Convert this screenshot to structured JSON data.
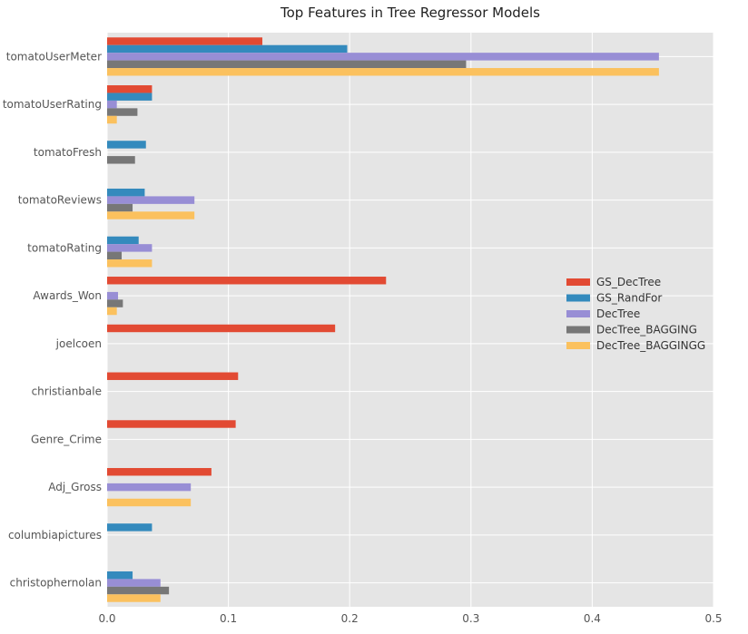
{
  "chart_data": {
    "type": "bar",
    "orientation": "horizontal",
    "title": "Top Features in Tree Regressor Models",
    "xlabel": "",
    "ylabel": "",
    "xlim": [
      0,
      0.5
    ],
    "xticks": [
      0.0,
      0.1,
      0.2,
      0.3,
      0.4,
      0.5
    ],
    "xtick_labels": [
      "0.0",
      "0.1",
      "0.2",
      "0.3",
      "0.4",
      "0.5"
    ],
    "grid": true,
    "legend_position": "center-right",
    "categories": [
      "tomatoUserMeter",
      "tomatoUserRating",
      "tomatoFresh",
      "tomatoReviews",
      "tomatoRating",
      "Awards_Won",
      "joelcoen",
      "christianbale",
      "Genre_Crime",
      "Adj_Gross",
      "columbiapictures",
      "christophernolan"
    ],
    "series": [
      {
        "name": "GS_DecTree",
        "color": "#e24a33",
        "values": [
          0.128,
          0.037,
          0,
          0,
          0,
          0.23,
          0.188,
          0.108,
          0.106,
          0.086,
          0,
          0
        ]
      },
      {
        "name": "GS_RandFor",
        "color": "#348abd",
        "values": [
          0.198,
          0.037,
          0.032,
          0.031,
          0.026,
          0,
          0,
          0,
          0,
          0,
          0.037,
          0.021
        ]
      },
      {
        "name": "DecTree",
        "color": "#988ed5",
        "values": [
          0.455,
          0.008,
          0,
          0.072,
          0.037,
          0.009,
          0,
          0,
          0,
          0.069,
          0,
          0.044
        ]
      },
      {
        "name": "DecTree_BAGGING",
        "color": "#777777",
        "values": [
          0.296,
          0.025,
          0.023,
          0.021,
          0.012,
          0.013,
          0,
          0,
          0,
          0,
          0,
          0.051
        ]
      },
      {
        "name": "DecTree_BAGGINGG",
        "color": "#fbc15e",
        "values": [
          0.455,
          0.008,
          0,
          0.072,
          0.037,
          0.008,
          0,
          0,
          0,
          0.069,
          0,
          0.044
        ]
      }
    ]
  },
  "colors": {
    "plot_background": "#e5e5e5",
    "grid": "#ffffff"
  }
}
